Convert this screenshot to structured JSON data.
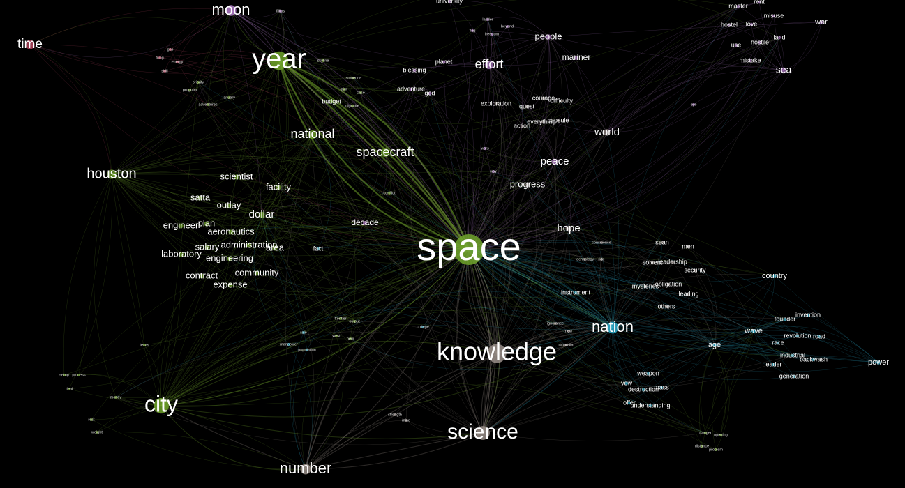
{
  "colors": {
    "green": "#6fa32a",
    "purple": "#b07cc8",
    "cyan": "#2aa8c8",
    "pink": "#d0506e",
    "gray": "#9a8f8a",
    "background": "#000000"
  },
  "nodes": [
    {
      "id": "space",
      "label": "space",
      "size": 1.0,
      "group": "green"
    },
    {
      "id": "knowledge",
      "label": "knowledge",
      "size": 0.62,
      "group": "gray"
    },
    {
      "id": "year",
      "label": "year",
      "size": 0.6,
      "group": "green"
    },
    {
      "id": "city",
      "label": "city",
      "size": 0.5,
      "group": "green"
    },
    {
      "id": "science",
      "label": "science",
      "size": 0.45,
      "group": "gray"
    },
    {
      "id": "nation",
      "label": "nation",
      "size": 0.38,
      "group": "cyan"
    },
    {
      "id": "moon",
      "label": "moon",
      "size": 0.35,
      "group": "purple"
    },
    {
      "id": "number",
      "label": "number",
      "size": 0.34,
      "group": "gray"
    },
    {
      "id": "time",
      "label": "time",
      "size": 0.3,
      "group": "pink"
    },
    {
      "id": "houston",
      "label": "houston",
      "size": 0.3,
      "group": "green"
    },
    {
      "id": "national",
      "label": "national",
      "size": 0.28,
      "group": "green"
    },
    {
      "id": "spacecraft",
      "label": "spacecraft",
      "size": 0.28,
      "group": "green"
    },
    {
      "id": "effort",
      "label": "effort",
      "size": 0.28,
      "group": "purple"
    },
    {
      "id": "world",
      "label": "world",
      "size": 0.22,
      "group": "gray"
    },
    {
      "id": "sea",
      "label": "sea",
      "size": 0.2,
      "group": "purple"
    },
    {
      "id": "peace",
      "label": "peace",
      "size": 0.2,
      "group": "purple"
    },
    {
      "id": "hope",
      "label": "hope",
      "size": 0.2,
      "group": "gray"
    },
    {
      "id": "dollar",
      "label": "dollar",
      "size": 0.2,
      "group": "green"
    },
    {
      "id": "people",
      "label": "people",
      "size": 0.17,
      "group": "purple"
    },
    {
      "id": "scientist",
      "label": "scientist",
      "size": 0.16,
      "group": "green"
    },
    {
      "id": "facility",
      "label": "facility",
      "size": 0.16,
      "group": "green"
    },
    {
      "id": "satta",
      "label": "satta",
      "size": 0.16,
      "group": "green"
    },
    {
      "id": "outlay",
      "label": "outlay",
      "size": 0.16,
      "group": "green"
    },
    {
      "id": "engineer",
      "label": "engineer",
      "size": 0.16,
      "group": "green"
    },
    {
      "id": "plan",
      "label": "plan",
      "size": 0.16,
      "group": "green"
    },
    {
      "id": "aeronautics",
      "label": "aeronautics",
      "size": 0.16,
      "group": "green"
    },
    {
      "id": "administration",
      "label": "administration",
      "size": 0.16,
      "group": "green"
    },
    {
      "id": "salary",
      "label": "salary",
      "size": 0.16,
      "group": "green"
    },
    {
      "id": "area",
      "label": "area",
      "size": 0.16,
      "group": "green"
    },
    {
      "id": "laboratory",
      "label": "laboratory",
      "size": 0.16,
      "group": "green"
    },
    {
      "id": "engineering",
      "label": "engineering",
      "size": 0.16,
      "group": "green"
    },
    {
      "id": "community",
      "label": "community",
      "size": 0.16,
      "group": "green"
    },
    {
      "id": "contract",
      "label": "contract",
      "size": 0.16,
      "group": "green"
    },
    {
      "id": "expense",
      "label": "expense",
      "size": 0.16,
      "group": "green"
    },
    {
      "id": "decade",
      "label": "decade",
      "size": 0.14,
      "group": "purple"
    },
    {
      "id": "progress",
      "label": "progress",
      "size": 0.14,
      "group": "gray"
    },
    {
      "id": "mariner",
      "label": "mariner",
      "size": 0.13,
      "group": "purple"
    },
    {
      "id": "power",
      "label": "power",
      "size": 0.13,
      "group": "cyan"
    },
    {
      "id": "wave",
      "label": "wave",
      "size": 0.13,
      "group": "cyan"
    },
    {
      "id": "age",
      "label": "age",
      "size": 0.13,
      "group": "cyan"
    },
    {
      "id": "country",
      "label": "country",
      "size": 0.13,
      "group": "cyan"
    },
    {
      "id": "war",
      "label": "war",
      "size": 0.12,
      "group": "purple"
    },
    {
      "id": "blessing",
      "label": "blessing",
      "size": 0.11,
      "group": "purple"
    },
    {
      "id": "planet",
      "label": "planet",
      "size": 0.11,
      "group": "purple"
    },
    {
      "id": "adventure",
      "label": "adventure",
      "size": 0.11,
      "group": "purple"
    },
    {
      "id": "god",
      "label": "god",
      "size": 0.11,
      "group": "purple"
    },
    {
      "id": "budget",
      "label": "budget",
      "size": 0.11,
      "group": "green"
    },
    {
      "id": "exploration",
      "label": "exploration",
      "size": 0.11,
      "group": "gray"
    },
    {
      "id": "quest",
      "label": "quest",
      "size": 0.11,
      "group": "gray"
    },
    {
      "id": "courage",
      "label": "courage",
      "size": 0.11,
      "group": "gray"
    },
    {
      "id": "difficulty",
      "label": "difficulty",
      "size": 0.11,
      "group": "gray"
    },
    {
      "id": "action",
      "label": "action",
      "size": 0.1,
      "group": "gray"
    },
    {
      "id": "everything",
      "label": "everything",
      "size": 0.1,
      "group": "gray"
    },
    {
      "id": "capsule",
      "label": "capsule",
      "size": 0.1,
      "group": "gray"
    },
    {
      "id": "fact",
      "label": "fact",
      "size": 0.1,
      "group": "cyan"
    },
    {
      "id": "sean",
      "label": "sean",
      "size": 0.1,
      "group": "gray"
    },
    {
      "id": "men",
      "label": "men",
      "size": 0.1,
      "group": "gray"
    },
    {
      "id": "solvent",
      "label": "solvent",
      "size": 0.1,
      "group": "gray"
    },
    {
      "id": "leadership",
      "label": "leadership",
      "size": 0.1,
      "group": "gray"
    },
    {
      "id": "security",
      "label": "security",
      "size": 0.1,
      "group": "gray"
    },
    {
      "id": "mysteries",
      "label": "mysteries",
      "size": 0.1,
      "group": "gray"
    },
    {
      "id": "obligation",
      "label": "obligation",
      "size": 0.1,
      "group": "gray"
    },
    {
      "id": "leading",
      "label": "leading",
      "size": 0.1,
      "group": "gray"
    },
    {
      "id": "others",
      "label": "others",
      "size": 0.1,
      "group": "gray"
    },
    {
      "id": "instrument",
      "label": "instrument",
      "size": 0.1,
      "group": "cyan"
    },
    {
      "id": "founder",
      "label": "founder",
      "size": 0.1,
      "group": "cyan"
    },
    {
      "id": "invention",
      "label": "invention",
      "size": 0.1,
      "group": "cyan"
    },
    {
      "id": "revolution",
      "label": "revolution",
      "size": 0.1,
      "group": "cyan"
    },
    {
      "id": "road",
      "label": "road",
      "size": 0.1,
      "group": "cyan"
    },
    {
      "id": "race",
      "label": "race",
      "size": 0.1,
      "group": "cyan"
    },
    {
      "id": "industrial",
      "label": "industrial",
      "size": 0.1,
      "group": "cyan"
    },
    {
      "id": "backwash",
      "label": "backwash",
      "size": 0.1,
      "group": "cyan"
    },
    {
      "id": "leader",
      "label": "leader",
      "size": 0.1,
      "group": "cyan"
    },
    {
      "id": "generation",
      "label": "generation",
      "size": 0.1,
      "group": "cyan"
    },
    {
      "id": "weapon",
      "label": "weapon",
      "size": 0.1,
      "group": "cyan"
    },
    {
      "id": "vow",
      "label": "vow",
      "size": 0.1,
      "group": "cyan"
    },
    {
      "id": "destruction",
      "label": "destruction",
      "size": 0.1,
      "group": "cyan"
    },
    {
      "id": "mass",
      "label": "mass",
      "size": 0.1,
      "group": "cyan"
    },
    {
      "id": "offer",
      "label": "offer",
      "size": 0.1,
      "group": "cyan"
    },
    {
      "id": "understanding",
      "label": "understanding",
      "size": 0.1,
      "group": "cyan"
    },
    {
      "id": "master",
      "label": "master",
      "size": 0.1,
      "group": "purple"
    },
    {
      "id": "rent",
      "label": "rent",
      "size": 0.1,
      "group": "purple"
    },
    {
      "id": "hostel",
      "label": "hostel",
      "size": 0.1,
      "group": "purple"
    },
    {
      "id": "love",
      "label": "love",
      "size": 0.1,
      "group": "purple"
    },
    {
      "id": "misuse",
      "label": "misuse",
      "size": 0.1,
      "group": "purple"
    },
    {
      "id": "land",
      "label": "land",
      "size": 0.1,
      "group": "purple"
    },
    {
      "id": "use",
      "label": "use",
      "size": 0.1,
      "group": "purple"
    },
    {
      "id": "hostile",
      "label": "hostile",
      "size": 0.1,
      "group": "purple"
    },
    {
      "id": "mistake",
      "label": "mistake",
      "size": 0.1,
      "group": "purple"
    },
    {
      "id": "university",
      "label": "university",
      "size": 0.09,
      "group": "purple"
    },
    {
      "id": "fillips",
      "label": "fillips",
      "size": 0.05,
      "group": "purple"
    },
    {
      "id": "gas",
      "label": "gas",
      "size": 0.05,
      "group": "pink"
    },
    {
      "id": "tiling",
      "label": "tiling",
      "size": 0.05,
      "group": "pink"
    },
    {
      "id": "energy",
      "label": "energy",
      "size": 0.05,
      "group": "pink"
    },
    {
      "id": "skill",
      "label": "skill",
      "size": 0.05,
      "group": "pink"
    },
    {
      "id": "priority",
      "label": "priority",
      "size": 0.05,
      "group": "green"
    },
    {
      "id": "program",
      "label": "program",
      "size": 0.05,
      "group": "green"
    },
    {
      "id": "adventures",
      "label": "adventures",
      "size": 0.05,
      "group": "green"
    },
    {
      "id": "january",
      "label": "january",
      "size": 0.05,
      "group": "green"
    },
    {
      "id": "skyline",
      "label": "skyline",
      "size": 0.05,
      "group": "green"
    },
    {
      "id": "someone",
      "label": "someone",
      "size": 0.05,
      "group": "green"
    },
    {
      "id": "aim",
      "label": "aim",
      "size": 0.05,
      "group": "green"
    },
    {
      "id": "case",
      "label": "case",
      "size": 0.05,
      "group": "green"
    },
    {
      "id": "dignatte",
      "label": "dignatte",
      "size": 0.05,
      "group": "green"
    },
    {
      "id": "conflict",
      "label": "conflict",
      "size": 0.05,
      "group": "green"
    },
    {
      "id": "ladder",
      "label": "ladder",
      "size": 0.05,
      "group": "purple"
    },
    {
      "id": "beyond",
      "label": "beyond",
      "size": 0.05,
      "group": "purple"
    },
    {
      "id": "flag",
      "label": "flag",
      "size": 0.05,
      "group": "purple"
    },
    {
      "id": "freedom",
      "label": "freedom",
      "size": 0.05,
      "group": "purple"
    },
    {
      "id": "wars",
      "label": "wars",
      "size": 0.05,
      "group": "purple"
    },
    {
      "id": "way",
      "label": "way",
      "size": 0.05,
      "group": "purple"
    },
    {
      "id": "eye",
      "label": "eye",
      "size": 0.05,
      "group": "purple"
    },
    {
      "id": "conscience",
      "label": "conscience",
      "size": 0.05,
      "group": "gray"
    },
    {
      "id": "technology",
      "label": "technology",
      "size": 0.05,
      "group": "gray"
    },
    {
      "id": "ride",
      "label": "ride",
      "size": 0.05,
      "group": "gray"
    },
    {
      "id": "ignorance",
      "label": "ignorance",
      "size": 0.05,
      "group": "gray"
    },
    {
      "id": "new",
      "label": "new",
      "size": 0.05,
      "group": "gray"
    },
    {
      "id": "umbrella",
      "label": "umbrella",
      "size": 0.05,
      "group": "gray"
    },
    {
      "id": "college",
      "label": "college",
      "size": 0.05,
      "group": "cyan"
    },
    {
      "id": "frontier",
      "label": "frontier",
      "size": 0.05,
      "group": "green"
    },
    {
      "id": "output",
      "label": "output",
      "size": 0.05,
      "group": "green"
    },
    {
      "id": "rate",
      "label": "rate",
      "size": 0.05,
      "group": "cyan"
    },
    {
      "id": "manpower",
      "label": "manpower",
      "size": 0.05,
      "group": "cyan"
    },
    {
      "id": "population",
      "label": "population",
      "size": 0.05,
      "group": "cyan"
    },
    {
      "id": "west",
      "label": "west",
      "size": 0.05,
      "group": "green"
    },
    {
      "id": "new2",
      "label": "new",
      "size": 0.05,
      "group": "green"
    },
    {
      "id": "texas",
      "label": "texas",
      "size": 0.05,
      "group": "green"
    },
    {
      "id": "setup",
      "label": "setup",
      "size": 0.05,
      "group": "green"
    },
    {
      "id": "process",
      "label": "process",
      "size": 0.05,
      "group": "green"
    },
    {
      "id": "deal",
      "label": "deal",
      "size": 0.05,
      "group": "green"
    },
    {
      "id": "money",
      "label": "money",
      "size": 0.05,
      "group": "green"
    },
    {
      "id": "rest",
      "label": "rest",
      "size": 0.05,
      "group": "green"
    },
    {
      "id": "weight",
      "label": "weight",
      "size": 0.05,
      "group": "green"
    },
    {
      "id": "strength",
      "label": "strength",
      "size": 0.05,
      "group": "gray"
    },
    {
      "id": "mind",
      "label": "mind",
      "size": 0.05,
      "group": "gray"
    },
    {
      "id": "danger",
      "label": "danger",
      "size": 0.05,
      "group": "green"
    },
    {
      "id": "opening",
      "label": "opening",
      "size": 0.05,
      "group": "green"
    },
    {
      "id": "distance",
      "label": "distance",
      "size": 0.05,
      "group": "green"
    },
    {
      "id": "problem",
      "label": "problem",
      "size": 0.05,
      "group": "green"
    }
  ],
  "hubs": [
    "space",
    "year",
    "knowledge",
    "nation",
    "city",
    "science",
    "houston",
    "effort",
    "world",
    "sea",
    "peace",
    "moon",
    "time",
    "number",
    "power",
    "hope",
    "dollar",
    "national",
    "spacecraft",
    "people",
    "wave",
    "age"
  ]
}
